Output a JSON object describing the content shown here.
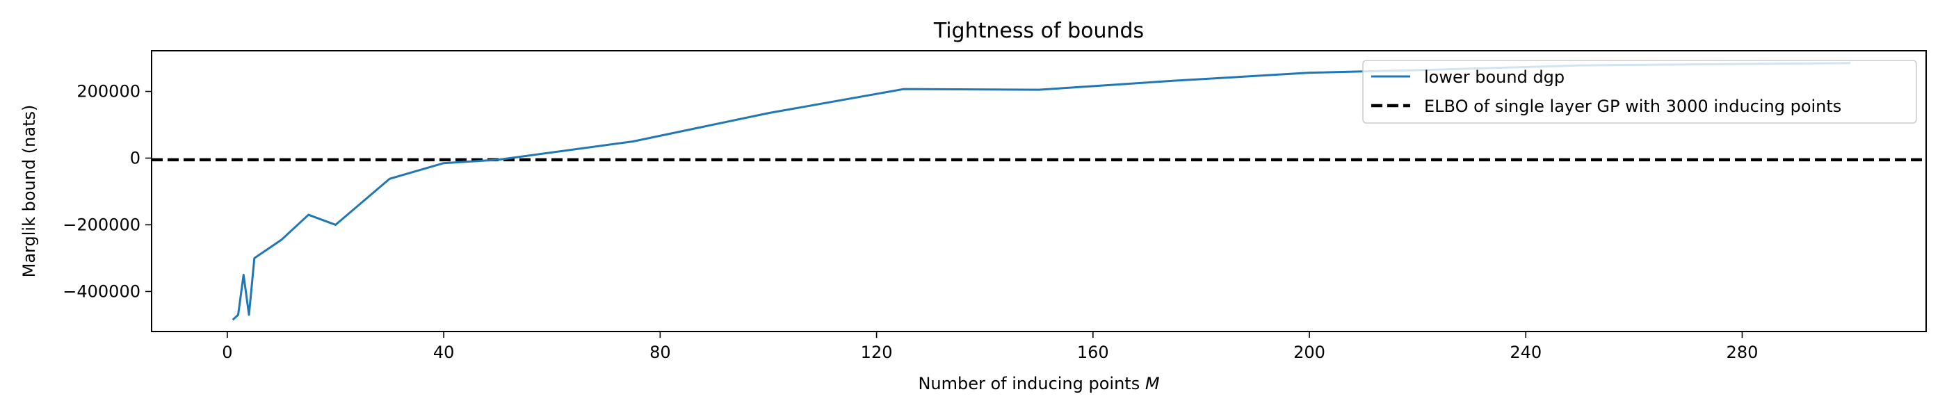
{
  "chart_data": {
    "type": "line",
    "title": "Tightness of bounds",
    "xlabel": "Number of inducing points ",
    "xlabel_var": "M",
    "ylabel": "Marglik bound (nats)",
    "xlim": [
      -14,
      314
    ],
    "ylim": [
      -520000,
      322000
    ],
    "xticks": [
      0,
      40,
      80,
      120,
      160,
      200,
      240,
      280
    ],
    "yticks": [
      -400000,
      -200000,
      0,
      200000
    ],
    "ytick_labels": [
      "−400000",
      "−200000",
      "0",
      "200000"
    ],
    "grid": false,
    "legend_position": "top-right",
    "series": [
      {
        "name": "lower bound dgp",
        "color": "#1f77b4",
        "style": "solid",
        "x": [
          1,
          2,
          3,
          4,
          5,
          10,
          15,
          20,
          30,
          40,
          50,
          75,
          100,
          125,
          150,
          175,
          200,
          225,
          250,
          300
        ],
        "y": [
          -485000,
          -470000,
          -350000,
          -470000,
          -300000,
          -245000,
          -170000,
          -200000,
          -62000,
          -15000,
          -5000,
          50000,
          135000,
          207000,
          205000,
          232000,
          256000,
          266000,
          278000,
          285000
        ]
      },
      {
        "name": "ELBO of single layer GP with 3000 inducing points",
        "color": "#000000",
        "style": "dashed",
        "hline_y": -5000
      }
    ]
  }
}
